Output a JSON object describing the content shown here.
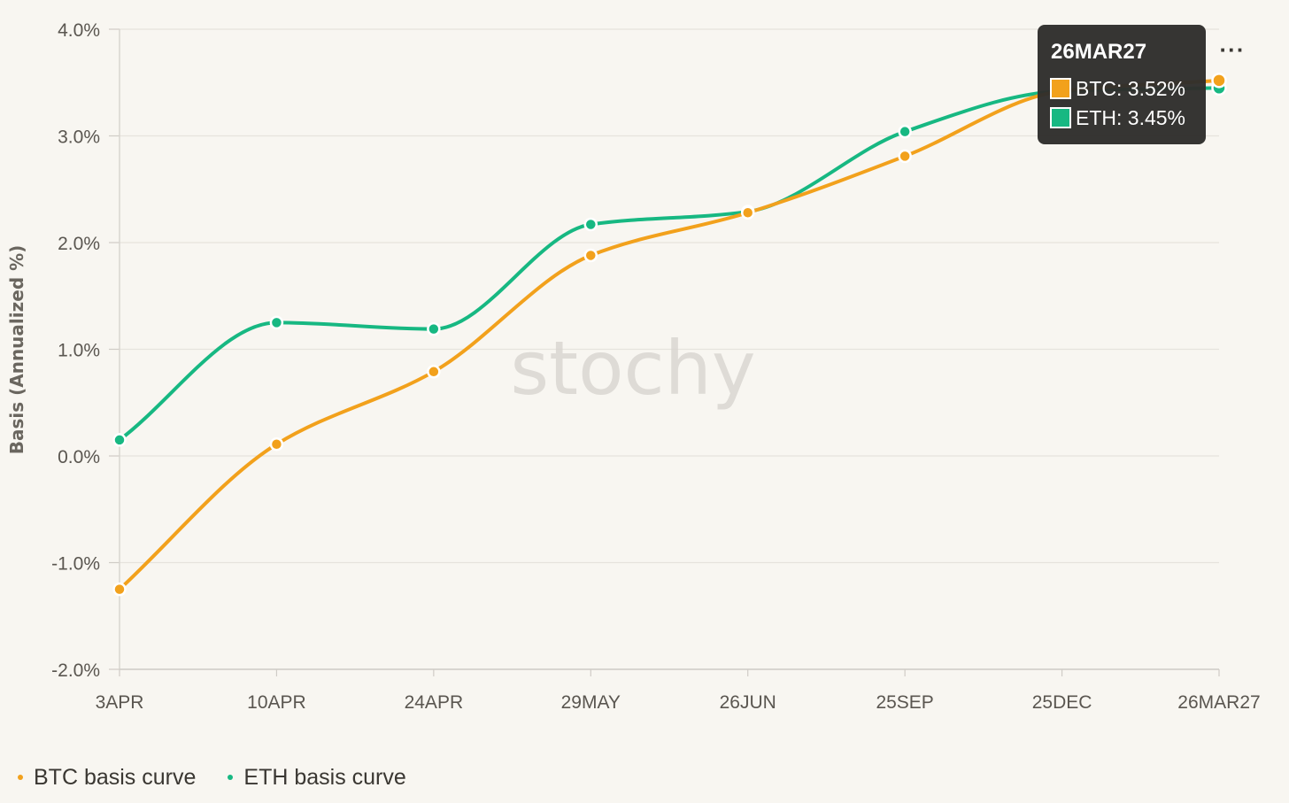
{
  "chart_data": {
    "type": "line",
    "watermark": "stochy",
    "ylabel": "Basis (Annualized %)",
    "xlabel": "",
    "categories": [
      "3APR",
      "10APR",
      "24APR",
      "29MAY",
      "26JUN",
      "25SEP",
      "25DEC",
      "26MAR27"
    ],
    "y_ticks": [
      4.0,
      3.0,
      2.0,
      1.0,
      0.0,
      -1.0,
      -2.0
    ],
    "y_tick_labels": [
      "4.0%",
      "3.0%",
      "2.0%",
      "1.0%",
      "0.0%",
      "-1.0%",
      "-2.0%"
    ],
    "ylim": [
      -2.0,
      4.0
    ],
    "grid": true,
    "legend_placement": "bottom-left",
    "series": [
      {
        "name": "BTC basis curve",
        "short_name": "BTC",
        "color": "#f2a11c",
        "values": [
          -1.25,
          0.11,
          0.79,
          1.88,
          2.28,
          2.81,
          3.42,
          3.52
        ]
      },
      {
        "name": "ETH basis curve",
        "short_name": "ETH",
        "color": "#17b882",
        "values": [
          0.15,
          1.25,
          1.19,
          2.17,
          2.29,
          3.04,
          3.42,
          3.45
        ]
      }
    ],
    "tooltip": {
      "title": "26MAR27",
      "rows": [
        "BTC: 3.52%",
        "ETH: 3.45%"
      ],
      "category_index": 7
    }
  },
  "legend": {
    "items": [
      {
        "label": "BTC basis curve",
        "color": "#f2a11c"
      },
      {
        "label": "ETH basis curve",
        "color": "#17b882"
      }
    ]
  },
  "menu": {
    "icon": "more-horizontal-icon",
    "glyph": "···"
  }
}
